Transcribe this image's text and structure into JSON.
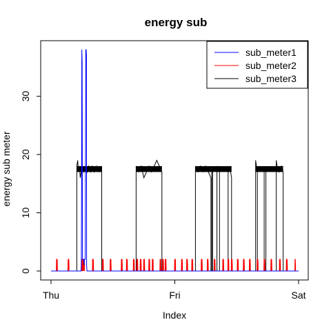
{
  "chart_data": {
    "type": "line",
    "title": "energy sub",
    "xlabel": "Index",
    "ylabel": "energy sub meter",
    "x_ticks": [
      "Thu",
      "Fri",
      "Sat"
    ],
    "y_ticks": [
      0,
      10,
      20,
      30
    ],
    "xlim": [
      0,
      2880
    ],
    "ylim": [
      0,
      38
    ],
    "grid": false,
    "legend_position": "top-right",
    "series": [
      {
        "name": "sub_meter1",
        "color": "#0000ff",
        "points": [
          [
            0,
            0
          ],
          [
            350,
            0
          ],
          [
            352,
            1
          ],
          [
            355,
            14
          ],
          [
            358,
            38
          ],
          [
            362,
            36
          ],
          [
            366,
            2
          ],
          [
            380,
            2
          ],
          [
            385,
            1
          ],
          [
            388,
            2
          ],
          [
            398,
            2
          ],
          [
            400,
            14
          ],
          [
            404,
            38
          ],
          [
            408,
            38
          ],
          [
            412,
            37
          ],
          [
            414,
            1
          ],
          [
            418,
            0
          ],
          [
            2880,
            0
          ]
        ]
      },
      {
        "name": "sub_meter2",
        "color": "#ff0000",
        "spikes": [
          65,
          70,
          200,
          205,
          355,
          360,
          370,
          375,
          385,
          485,
          490,
          600,
          605,
          690,
          695,
          820,
          825,
          880,
          885,
          960,
          965,
          1000,
          1005,
          1040,
          1045,
          1080,
          1085,
          1140,
          1145,
          1180,
          1185,
          1270,
          1275,
          1300,
          1305,
          1330,
          1335,
          1440,
          1445,
          1520,
          1525,
          1580,
          1585,
          1640,
          1645,
          1750,
          1755,
          1820,
          1825,
          1900,
          1905,
          2000,
          2005,
          2060,
          2065,
          2100,
          2105,
          2170,
          2175,
          2240,
          2245,
          2310,
          2315,
          2400,
          2405,
          2480,
          2485,
          2560,
          2565,
          2660,
          2665,
          2740,
          2745,
          2840
        ],
        "spike_value": 2
      },
      {
        "name": "sub_meter3",
        "color": "#000000",
        "segments": [
          [
            [
              0,
              0
            ],
            [
              300,
              0
            ],
            [
              300,
              18
            ],
            [
              310,
              19
            ],
            [
              320,
              17
            ],
            [
              330,
              18
            ],
            [
              340,
              16
            ],
            [
              350,
              17
            ],
            [
              360,
              18
            ],
            [
              380,
              17
            ],
            [
              400,
              18
            ],
            [
              420,
              17
            ],
            [
              440,
              18
            ],
            [
              460,
              17
            ],
            [
              480,
              18
            ],
            [
              500,
              17
            ],
            [
              530,
              18
            ],
            [
              560,
              17
            ],
            [
              590,
              18
            ],
            [
              590,
              0
            ]
          ],
          [
            [
              590,
              0
            ],
            [
              990,
              0
            ],
            [
              990,
              18
            ],
            [
              1020,
              17
            ],
            [
              1050,
              18
            ],
            [
              1080,
              16
            ],
            [
              1110,
              17
            ],
            [
              1140,
              18
            ],
            [
              1170,
              17
            ],
            [
              1200,
              18
            ],
            [
              1230,
              19
            ],
            [
              1260,
              18
            ],
            [
              1290,
              17
            ],
            [
              1290,
              0
            ]
          ],
          [
            [
              1290,
              0
            ],
            [
              1680,
              0
            ],
            [
              1680,
              18
            ],
            [
              1710,
              17
            ],
            [
              1740,
              18
            ],
            [
              1770,
              17
            ],
            [
              1800,
              18
            ],
            [
              1830,
              17
            ],
            [
              1860,
              16
            ],
            [
              1860,
              0
            ],
            [
              1870,
              0
            ],
            [
              1870,
              18
            ],
            [
              1880,
              17
            ],
            [
              1880,
              0
            ],
            [
              1930,
              0
            ],
            [
              1930,
              18
            ],
            [
              1945,
              17
            ],
            [
              1960,
              18
            ],
            [
              1960,
              0
            ],
            [
              2060,
              0
            ],
            [
              2060,
              18
            ],
            [
              2070,
              17
            ],
            [
              2080,
              18
            ],
            [
              2090,
              17
            ],
            [
              2100,
              16
            ],
            [
              2100,
              10
            ],
            [
              2100,
              0
            ]
          ],
          [
            [
              2100,
              0
            ],
            [
              2380,
              0
            ],
            [
              2380,
              19
            ],
            [
              2390,
              18
            ],
            [
              2400,
              17
            ],
            [
              2400,
              0
            ],
            [
              2480,
              0
            ],
            [
              2480,
              18
            ],
            [
              2500,
              17
            ],
            [
              2500,
              0
            ],
            [
              2620,
              0
            ],
            [
              2620,
              19
            ],
            [
              2630,
              18
            ],
            [
              2650,
              17
            ],
            [
              2680,
              18
            ],
            [
              2700,
              17
            ],
            [
              2700,
              0
            ],
            [
              2880,
              0
            ]
          ]
        ]
      }
    ]
  }
}
